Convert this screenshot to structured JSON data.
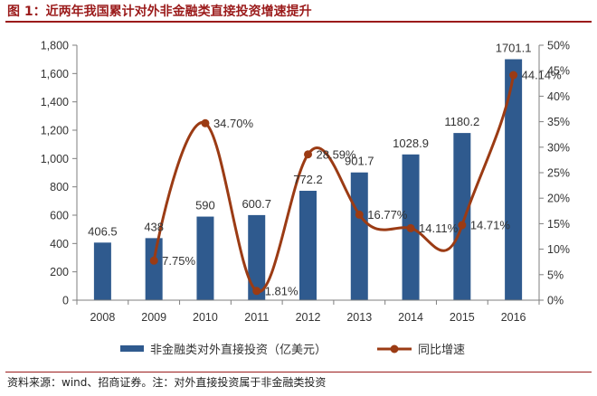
{
  "header": {
    "title": "图 1：近两年我国累计对外非金融类直接投资增速提升"
  },
  "footer": {
    "source": "资料来源：wind、招商证券。注：对外直接投资属于非金融类投资"
  },
  "colors": {
    "bar": "#2f5a8e",
    "line": "#9b3b14",
    "axis": "#7f7f7f",
    "title": "#9b1b1b"
  },
  "chart_data": {
    "type": "bar+line",
    "title": "图 1：近两年我国累计对外非金融类直接投资增速提升",
    "categories": [
      "2008",
      "2009",
      "2010",
      "2011",
      "2012",
      "2013",
      "2014",
      "2015",
      "2016"
    ],
    "series": [
      {
        "name": "非金融类对外直接投资（亿美元）",
        "type": "bar",
        "axis": "left",
        "values": [
          406.5,
          438,
          590,
          600.7,
          772.2,
          901.7,
          1028.9,
          1180.2,
          1701.1
        ],
        "labels": [
          "406.5",
          "438",
          "590",
          "600.7",
          "772.2",
          "901.7",
          "1028.9",
          "1180.2",
          "1701.1"
        ]
      },
      {
        "name": "同比增速",
        "type": "line",
        "axis": "right",
        "smooth": true,
        "values": [
          null,
          7.75,
          34.7,
          1.81,
          28.59,
          16.77,
          14.11,
          14.71,
          44.14
        ],
        "labels": [
          "",
          "7.75%",
          "34.70%",
          "1.81%",
          "28.59%",
          "16.77%",
          "14.11%",
          "14.71%",
          "44.14%"
        ]
      }
    ],
    "yleft": {
      "min": 0,
      "max": 1800,
      "step": 200,
      "ticks": [
        "0",
        "200",
        "400",
        "600",
        "800",
        "1,000",
        "1,200",
        "1,400",
        "1,600",
        "1,800"
      ]
    },
    "yright": {
      "min": 0,
      "max": 50,
      "step": 5,
      "ticks": [
        "0%",
        "5%",
        "10%",
        "15%",
        "20%",
        "25%",
        "30%",
        "35%",
        "40%",
        "45%",
        "50%"
      ]
    },
    "legend": {
      "position": "bottom",
      "items": [
        "非金融类对外直接投资（亿美元）",
        "同比增速"
      ]
    }
  }
}
